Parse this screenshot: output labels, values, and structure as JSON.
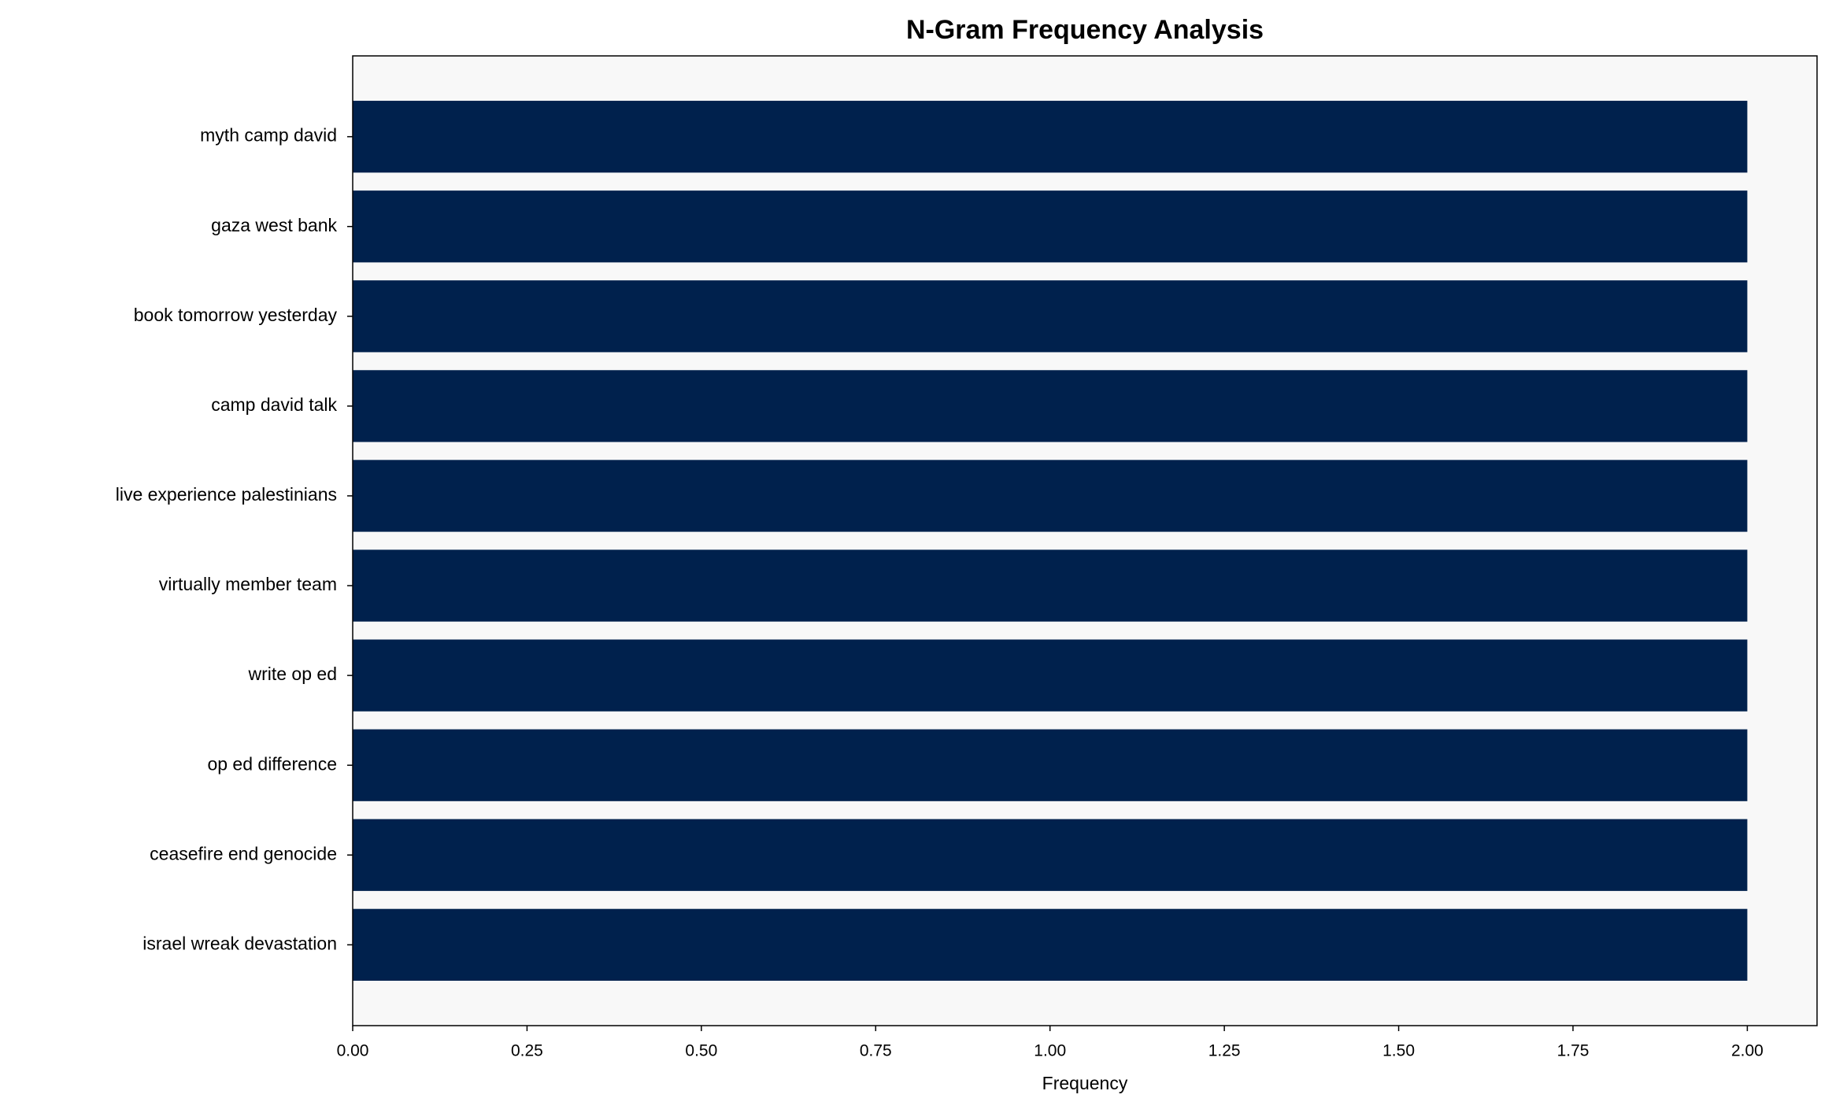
{
  "chart_data": {
    "type": "barh",
    "title": "N-Gram Frequency Analysis",
    "xlabel": "Frequency",
    "categories": [
      "myth camp david",
      "gaza west bank",
      "book tomorrow yesterday",
      "camp david talk",
      "live experience palestinians",
      "virtually member team",
      "write op ed",
      "op ed difference",
      "ceasefire end genocide",
      "israel wreak devastation"
    ],
    "values": [
      2,
      2,
      2,
      2,
      2,
      2,
      2,
      2,
      2,
      2
    ],
    "color": "#00214d",
    "background": "#f8f8f8",
    "xlim": [
      0,
      2.1
    ],
    "xticks": [
      {
        "value": 0,
        "label": "0.00"
      },
      {
        "value": 0.25,
        "label": "0.25"
      },
      {
        "value": 0.5,
        "label": "0.50"
      },
      {
        "value": 0.75,
        "label": "0.75"
      },
      {
        "value": 1,
        "label": "1.00"
      },
      {
        "value": 1.25,
        "label": "1.25"
      },
      {
        "value": 1.5,
        "label": "1.50"
      },
      {
        "value": 1.75,
        "label": "1.75"
      },
      {
        "value": 2,
        "label": "2.00"
      }
    ],
    "grid": false
  }
}
